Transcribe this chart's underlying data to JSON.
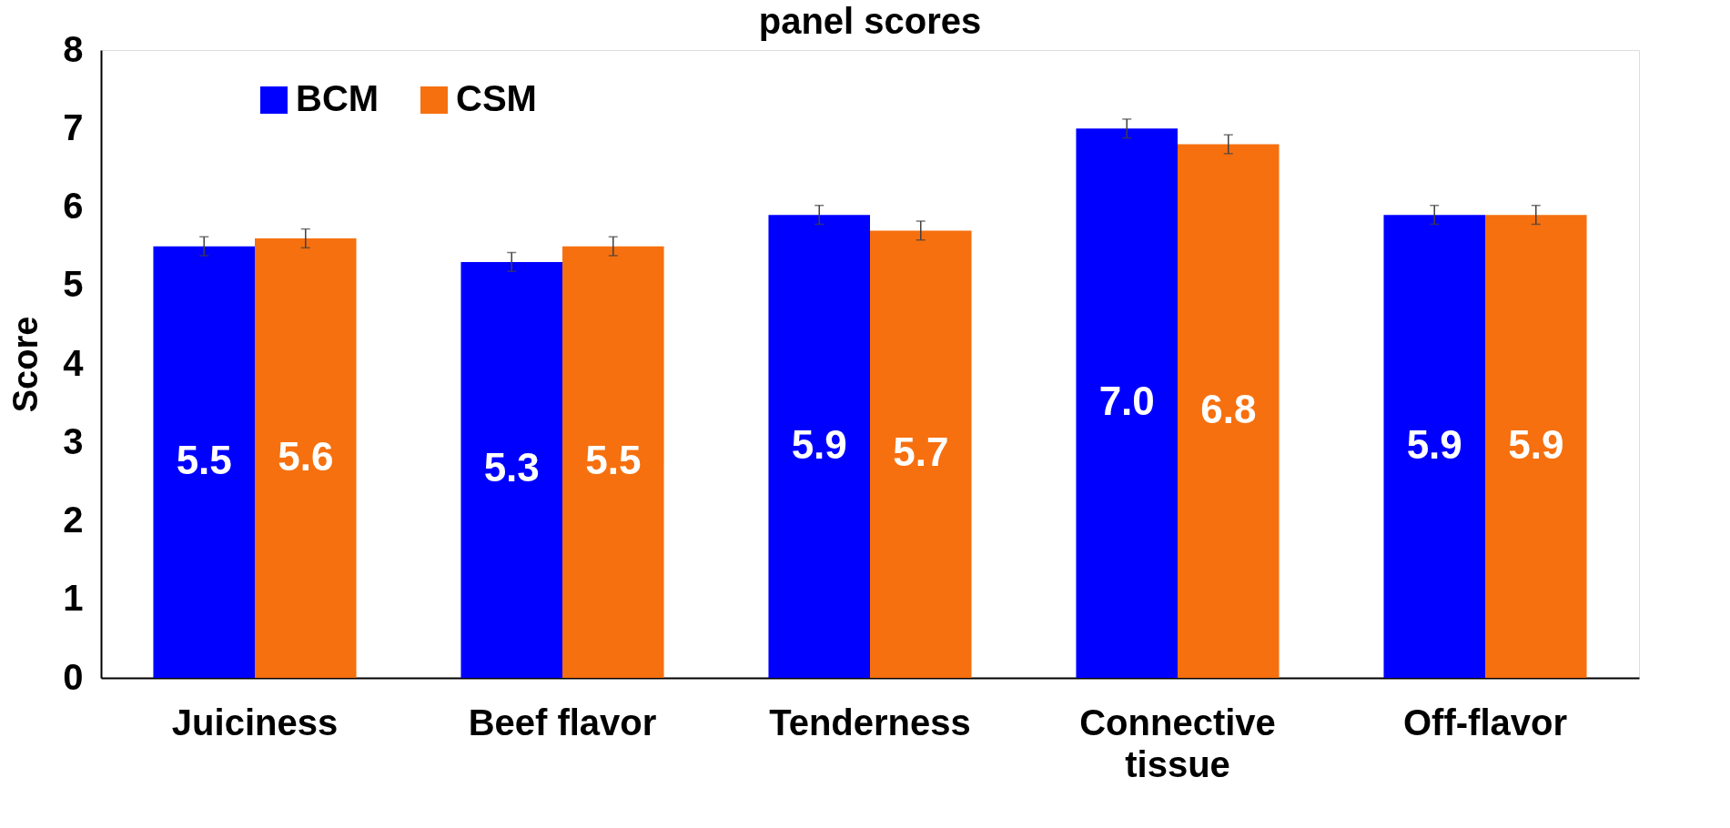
{
  "chart_data": {
    "type": "bar",
    "title": "panel scores",
    "ylabel": "Score",
    "categories": [
      "Juiciness",
      "Beef flavor",
      "Tenderness",
      "Connective tissue",
      "Off-flavor"
    ],
    "series": [
      {
        "name": "BCM",
        "color": "#0000ff",
        "values": [
          5.5,
          5.3,
          5.9,
          7.0,
          5.9
        ],
        "value_labels": [
          "5.5",
          "5.3",
          "5.9",
          "7.0",
          "5.9"
        ],
        "errors": [
          0.12,
          0.12,
          0.12,
          0.12,
          0.12
        ]
      },
      {
        "name": "CSM",
        "color": "#f6700f",
        "values": [
          5.6,
          5.5,
          5.7,
          6.8,
          5.9
        ],
        "value_labels": [
          "5.6",
          "5.5",
          "5.7",
          "6.8",
          "5.9"
        ],
        "errors": [
          0.12,
          0.12,
          0.12,
          0.12,
          0.12
        ]
      }
    ],
    "ylim": [
      0,
      8
    ],
    "yticks": [
      0,
      1,
      2,
      3,
      4,
      5,
      6,
      7,
      8
    ],
    "grid": false,
    "legend": "top left"
  }
}
